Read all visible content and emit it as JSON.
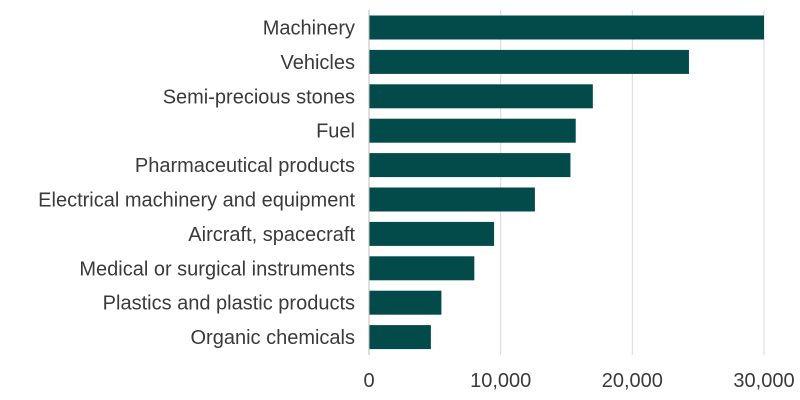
{
  "chart_data": {
    "type": "bar",
    "orientation": "horizontal",
    "title": "",
    "xlabel": "",
    "ylabel": "",
    "categories": [
      "Machinery",
      "Vehicles",
      "Semi-precious stones",
      "Fuel",
      "Pharmaceutical products",
      "Electrical machinery and equipment",
      "Aircraft, spacecraft",
      "Medical or surgical instruments",
      "Plastics and plastic products",
      "Organic chemicals"
    ],
    "values": [
      30000,
      24300,
      17000,
      15700,
      15300,
      12600,
      9500,
      8000,
      5500,
      4700
    ],
    "xlim": [
      0,
      32000
    ],
    "xticks": [
      0,
      10000,
      20000,
      30000
    ],
    "xtick_labels": [
      "0",
      "10,000",
      "20,000",
      "30,000"
    ],
    "grid": true,
    "legend": "none",
    "bar_color": "#024b4a"
  }
}
